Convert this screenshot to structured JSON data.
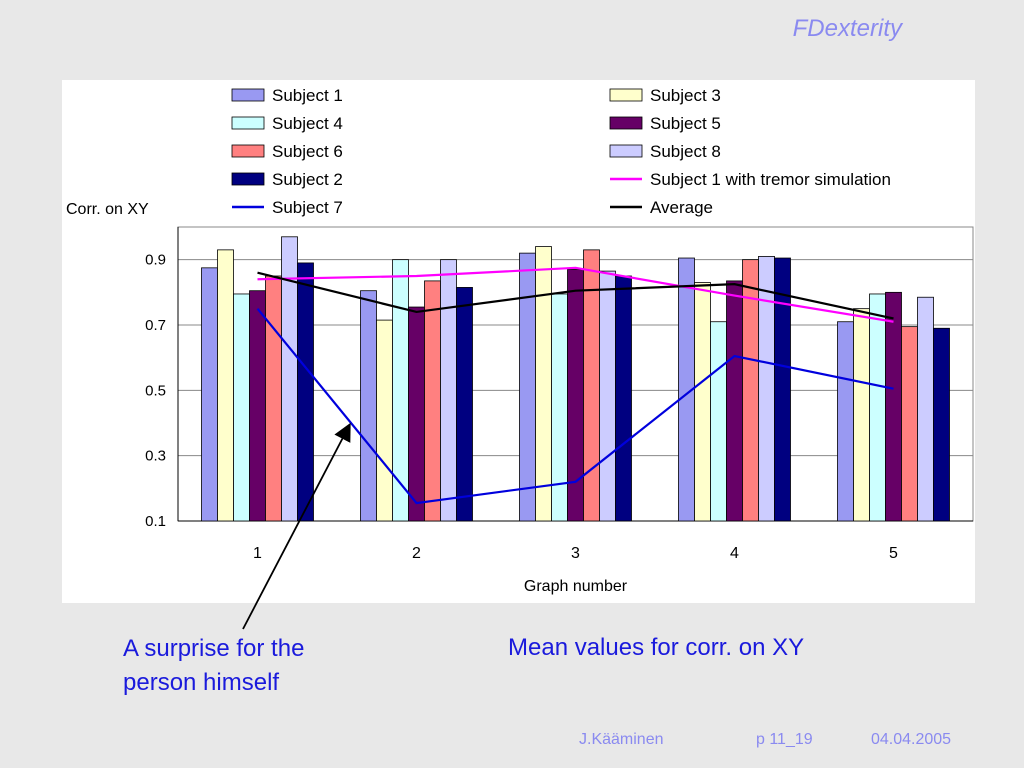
{
  "slide": {
    "title": "FDexterity",
    "caption_left_line1": "A surprise for the",
    "caption_left_line2": "person himself",
    "caption_right": "Mean values for corr. on XY",
    "footer_author": "J.Kääminen",
    "footer_page": "p 11_19",
    "footer_date": "04.04.2005"
  },
  "chart_data": {
    "type": "bar",
    "title": "",
    "xlabel": "Graph number",
    "ylabel": "Corr. on XY",
    "ylim": [
      0.1,
      1.0
    ],
    "yticks": [
      0.1,
      0.3,
      0.5,
      0.7,
      0.9
    ],
    "yticklabels": [
      "0.1",
      "0.3",
      "0.5",
      "0.7",
      "0.9"
    ],
    "categories": [
      "1",
      "2",
      "3",
      "4",
      "5"
    ],
    "grid": true,
    "legend_position": "top",
    "series": [
      {
        "name": "Subject 1",
        "kind": "bar",
        "color": "#9999f2",
        "values": [
          0.875,
          0.805,
          0.92,
          0.905,
          0.71
        ]
      },
      {
        "name": "Subject 3",
        "kind": "bar",
        "color": "#ffffcc",
        "values": [
          0.93,
          0.715,
          0.94,
          0.83,
          0.75
        ]
      },
      {
        "name": "Subject 4",
        "kind": "bar",
        "color": "#ccffff",
        "values": [
          0.795,
          0.9,
          0.795,
          0.71,
          0.795
        ]
      },
      {
        "name": "Subject 5",
        "kind": "bar",
        "color": "#660066",
        "values": [
          0.805,
          0.755,
          0.87,
          0.835,
          0.8
        ]
      },
      {
        "name": "Subject 6",
        "kind": "bar",
        "color": "#ff8080",
        "values": [
          0.85,
          0.835,
          0.93,
          0.9,
          0.695
        ]
      },
      {
        "name": "Subject 8",
        "kind": "bar",
        "color": "#ccccff",
        "values": [
          0.97,
          0.9,
          0.865,
          0.91,
          0.785
        ]
      },
      {
        "name": "Subject 2",
        "kind": "bar",
        "color": "#000080",
        "values": [
          0.89,
          0.815,
          0.85,
          0.905,
          0.69
        ]
      },
      {
        "name": "Subject 1 with tremor simulation",
        "kind": "line",
        "color": "#ff00ff",
        "values": [
          0.84,
          0.85,
          0.875,
          0.79,
          0.71
        ]
      },
      {
        "name": "Subject 7",
        "kind": "line",
        "color": "#0000dd",
        "values": [
          0.75,
          0.155,
          0.22,
          0.605,
          0.505
        ]
      },
      {
        "name": "Average",
        "kind": "line",
        "color": "#000000",
        "values": [
          0.86,
          0.74,
          0.805,
          0.825,
          0.72
        ]
      }
    ],
    "legend_order": [
      "Subject 1",
      "Subject 3",
      "Subject 4",
      "Subject 5",
      "Subject 6",
      "Subject 8",
      "Subject 2",
      "Subject 1 with tremor simulation",
      "Subject 7",
      "Average"
    ]
  }
}
